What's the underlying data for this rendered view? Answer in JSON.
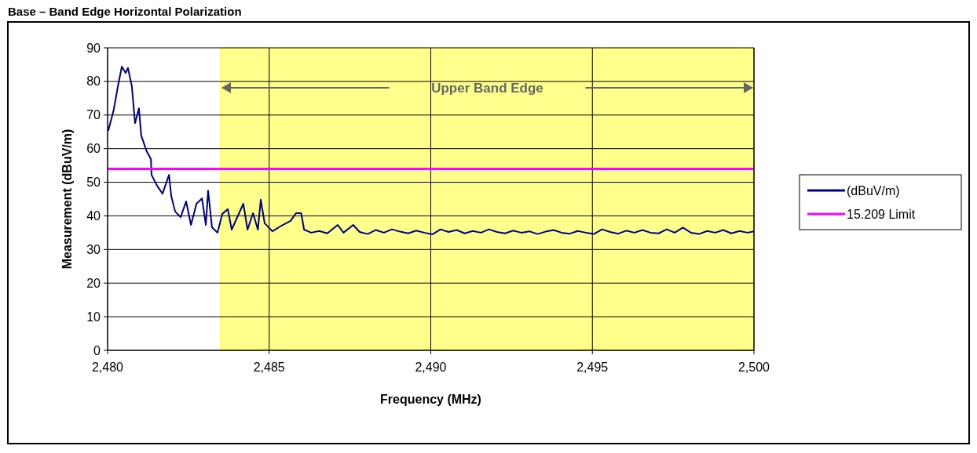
{
  "chart_data": {
    "type": "line",
    "title": "Base – Band Edge Horizontal Polarization",
    "xlabel": "Frequency (MHz)",
    "ylabel": "Measurement (dBuV/m)",
    "xlim": [
      2480,
      2500
    ],
    "xticks": [
      {
        "value": 2480,
        "label": "2,480"
      },
      {
        "value": 2485,
        "label": "2,485"
      },
      {
        "value": 2490,
        "label": "2,490"
      },
      {
        "value": 2495,
        "label": "2,495"
      },
      {
        "value": 2500,
        "label": "2,500"
      }
    ],
    "ylim": [
      0,
      90
    ],
    "yticks": [
      0,
      10,
      20,
      30,
      40,
      50,
      60,
      70,
      80,
      90
    ],
    "grid": true,
    "legend": "right",
    "bands": [
      {
        "axis": "x",
        "from": 2483.5,
        "to": 2500,
        "label": "Upper Band Edge",
        "color": "#ffff00"
      }
    ],
    "series": [
      {
        "name": "(dBuV/m)",
        "color": "#000080",
        "x": [
          2480.02,
          2480.19,
          2480.32,
          2480.44,
          2480.56,
          2480.63,
          2480.75,
          2480.85,
          2480.97,
          2481.04,
          2481.21,
          2481.34,
          2481.36,
          2481.53,
          2481.7,
          2481.9,
          2481.97,
          2482.09,
          2482.26,
          2482.43,
          2482.58,
          2482.75,
          2482.92,
          2483.04,
          2483.11,
          2483.23,
          2483.4,
          2483.55,
          2483.72,
          2483.84,
          2484.2,
          2484.33,
          2484.5,
          2484.65,
          2484.74,
          2484.86,
          2485.1,
          2485.42,
          2485.66,
          2485.83,
          2485.99,
          2486.08,
          2486.3,
          2486.55,
          2486.8,
          2487.12,
          2487.3,
          2487.6,
          2487.8,
          2488.05,
          2488.3,
          2488.55,
          2488.8,
          2489.05,
          2489.3,
          2489.55,
          2489.8,
          2490.05,
          2490.3,
          2490.55,
          2490.8,
          2491.05,
          2491.3,
          2491.55,
          2491.8,
          2492.05,
          2492.3,
          2492.55,
          2492.8,
          2493.05,
          2493.3,
          2493.55,
          2493.8,
          2494.05,
          2494.3,
          2494.55,
          2494.8,
          2495.05,
          2495.3,
          2495.55,
          2495.8,
          2496.05,
          2496.3,
          2496.55,
          2496.8,
          2497.05,
          2497.3,
          2497.55,
          2497.8,
          2498.05,
          2498.3,
          2498.55,
          2498.8,
          2499.05,
          2499.3,
          2499.55,
          2499.8,
          2500
        ],
        "values": [
          65.3,
          71.6,
          78.6,
          84.4,
          82.5,
          84,
          78.6,
          67.6,
          72,
          63.9,
          59.2,
          56.9,
          52.2,
          49,
          46.6,
          52.2,
          45.9,
          41.3,
          39.6,
          44.3,
          37.3,
          43.6,
          45.2,
          37.3,
          47.5,
          36.6,
          35,
          40.6,
          42,
          35.9,
          43.6,
          35.9,
          40.8,
          35.9,
          44.8,
          37.8,
          35.4,
          37.3,
          38.5,
          40.8,
          40.8,
          35.9,
          35,
          35.5,
          34.8,
          37.3,
          35,
          37.3,
          35.2,
          34.6,
          35.8,
          35,
          36,
          35.3,
          34.8,
          35.6,
          35,
          34.5,
          36,
          35.2,
          35.8,
          34.8,
          35.5,
          35,
          36,
          35.2,
          34.8,
          35.6,
          35,
          35.4,
          34.6,
          35.3,
          35.8,
          35,
          34.7,
          35.5,
          35,
          34.6,
          36,
          35.2,
          34.7,
          35.6,
          35,
          35.8,
          35,
          34.8,
          36,
          35,
          36.5,
          35,
          34.6,
          35.5,
          35,
          35.8,
          34.8,
          35.5,
          35,
          35.4
        ]
      },
      {
        "name": "15.209 Limit",
        "color": "#ff00ff",
        "x": [
          2480,
          2500
        ],
        "values": [
          54,
          54
        ]
      }
    ]
  }
}
